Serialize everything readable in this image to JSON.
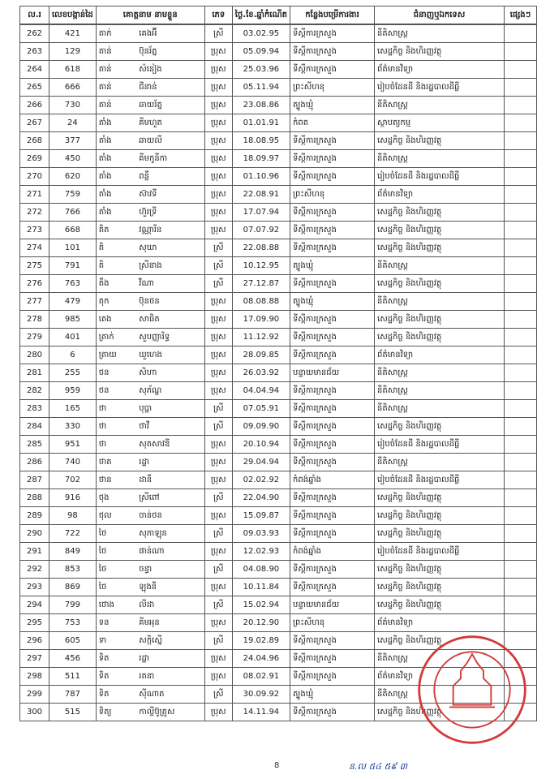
{
  "headers": {
    "no": "ល.រ",
    "id": "លេខបង្កាន់ដៃ",
    "name": "គោត្តនាម  នាមខ្លួន",
    "gender": "ភេទ",
    "dob": "ថ្ងៃ.ខែ.ឆ្នាំកំណើត",
    "workplace": "កន្លែងបម្រើការងារ",
    "subject": "ជំនាញឬឯកទេស",
    "other": "ផ្សេងៗ"
  },
  "rows": [
    {
      "no": "262",
      "id": "421",
      "surname": "តាក់",
      "name": "គេងអ៊ី",
      "gender": "ស្រី",
      "dob": "03.02.95",
      "workplace": "ទីស្តីការក្រសួង",
      "subject": "នីតិសាស្ត្រ"
    },
    {
      "no": "263",
      "id": "129",
      "surname": "តាន់",
      "name": "ប៊ុនរ័ត្ន",
      "gender": "ប្រុស",
      "dob": "05.09.94",
      "workplace": "ទីស្តីការក្រសួង",
      "subject": "សេដ្ឋកិច្ច និងហិរញ្ញវត្ថុ"
    },
    {
      "no": "264",
      "id": "618",
      "surname": "តាន់",
      "name": "សំនៀង",
      "gender": "ប្រុស",
      "dob": "25.03.96",
      "workplace": "ទីស្តីការក្រសួង",
      "subject": "ព័ត៌មានវិទ្យា"
    },
    {
      "no": "265",
      "id": "666",
      "surname": "តាន់",
      "name": "ជីនាន់",
      "gender": "ប្រុស",
      "dob": "05.11.94",
      "workplace": "ព្រះសីហនុ",
      "subject": "រៀបចំដែនដី និងរដ្ឋបាលដីធ្លី"
    },
    {
      "no": "266",
      "id": "730",
      "surname": "តាន់",
      "name": "ឆាយរ័ត្ន",
      "gender": "ប្រុស",
      "dob": "23.08.86",
      "workplace": "ត្បូងឃ្មុំ",
      "subject": "នីតិសាស្ត្រ"
    },
    {
      "no": "267",
      "id": "24",
      "surname": "តាំង",
      "name": "គីមហួត",
      "gender": "ប្រុស",
      "dob": "01.01.91",
      "workplace": "កំពត",
      "subject": "ស្ថាបត្យកម្ម"
    },
    {
      "no": "268",
      "id": "377",
      "surname": "តាំង",
      "name": "ឆាយលី",
      "gender": "ប្រុស",
      "dob": "18.08.95",
      "workplace": "ទីស្តីការក្រសួង",
      "subject": "សេដ្ឋកិច្ច និងហិរញ្ញវត្ថុ"
    },
    {
      "no": "269",
      "id": "450",
      "surname": "តាំង",
      "name": "គីមកូនីកា",
      "gender": "ប្រុស",
      "dob": "18.09.97",
      "workplace": "ទីស្តីការក្រសួង",
      "subject": "នីតិសាស្ត្រ"
    },
    {
      "no": "270",
      "id": "620",
      "surname": "តាំង",
      "name": "ពន្លឺ",
      "gender": "ប្រុស",
      "dob": "01.10.96",
      "workplace": "ទីស្តីការក្រសួង",
      "subject": "រៀបចំដែនដី និងរដ្ឋបាលដីធ្លី"
    },
    {
      "no": "271",
      "id": "759",
      "surname": "តាំង",
      "name": "ស៊ាវទី",
      "gender": "ប្រុស",
      "dob": "22.08.91",
      "workplace": "ព្រះសីហនុ",
      "subject": "ព័ត៌មានវិទ្យា"
    },
    {
      "no": "272",
      "id": "766",
      "surname": "តាំង",
      "name": "ហ៊ួរទ្រី",
      "gender": "ប្រុស",
      "dob": "17.07.94",
      "workplace": "ទីស្តីការក្រសួង",
      "subject": "សេដ្ឋកិច្ច និងហិរញ្ញវត្ថុ"
    },
    {
      "no": "273",
      "id": "668",
      "surname": "តិត",
      "name": "វណ្ណារីន",
      "gender": "ប្រុស",
      "dob": "07.07.92",
      "workplace": "ទីស្តីការក្រសួង",
      "subject": "សេដ្ឋកិច្ច និងហិរញ្ញវត្ថុ"
    },
    {
      "no": "274",
      "id": "101",
      "surname": "តិ",
      "name": "សុឃា",
      "gender": "ស្រី",
      "dob": "22.08.88",
      "workplace": "ទីស្តីការក្រសួង",
      "subject": "សេដ្ឋកិច្ច និងហិរញ្ញវត្ថុ"
    },
    {
      "no": "275",
      "id": "791",
      "surname": "តិ",
      "name": "ស្រីនាង",
      "gender": "ស្រី",
      "dob": "10.12.95",
      "workplace": "ត្បូងឃ្មុំ",
      "subject": "នីតិសាស្ត្រ"
    },
    {
      "no": "276",
      "id": "763",
      "surname": "តឹង",
      "name": "វីណា",
      "gender": "ស្រី",
      "dob": "27.12.87",
      "workplace": "ទីស្តីការក្រសួង",
      "subject": "សេដ្ឋកិច្ច និងហិរញ្ញវត្ថុ"
    },
    {
      "no": "277",
      "id": "479",
      "surname": "តុក",
      "name": "ប៊ុនថន",
      "gender": "ប្រុស",
      "dob": "08.08.88",
      "workplace": "ត្បូងឃ្មុំ",
      "subject": "នីតិសាស្ត្រ"
    },
    {
      "no": "278",
      "id": "985",
      "surname": "តេង",
      "name": "សាធិត",
      "gender": "ប្រុស",
      "dob": "17.09.90",
      "workplace": "ទីស្តីការក្រសួង",
      "subject": "សេដ្ឋកិច្ច និងហិរញ្ញវត្ថុ"
    },
    {
      "no": "279",
      "id": "401",
      "surname": "ត្រាក់",
      "name": "សួបញ្ញារិទ្ធ",
      "gender": "ប្រុស",
      "dob": "11.12.92",
      "workplace": "ទីស្តីការក្រសួង",
      "subject": "សេដ្ឋកិច្ច និងហិរញ្ញវត្ថុ"
    },
    {
      "no": "280",
      "id": "6",
      "surname": "ត្រាយ",
      "name": "ឃួហេង",
      "gender": "ប្រុស",
      "dob": "28.09.85",
      "workplace": "ទីស្តីការក្រសួង",
      "subject": "ព័ត៌មានវិទ្យា"
    },
    {
      "no": "281",
      "id": "255",
      "surname": "ថន",
      "name": "សិហា",
      "gender": "ប្រុស",
      "dob": "26.03.92",
      "workplace": "បន្ទាយមានជ័យ",
      "subject": "នីតិសាស្ត្រ"
    },
    {
      "no": "282",
      "id": "959",
      "surname": "ថន",
      "name": "សុភ័ណ្ឌ",
      "gender": "ប្រុស",
      "dob": "04.04.94",
      "workplace": "ទីស្តីការក្រសួង",
      "subject": "នីតិសាស្ត្រ"
    },
    {
      "no": "283",
      "id": "165",
      "surname": "ថា",
      "name": "បុប្ផា",
      "gender": "ស្រី",
      "dob": "07.05.91",
      "workplace": "ទីស្តីការក្រសួង",
      "subject": "នីតិសាស្ត្រ"
    },
    {
      "no": "284",
      "id": "330",
      "surname": "ថា",
      "name": "ថាវី",
      "gender": "ស្រី",
      "dob": "09.09.90",
      "workplace": "ទីស្តីការក្រសួង",
      "subject": "សេដ្ឋកិច្ច និងហិរញ្ញវត្ថុ"
    },
    {
      "no": "285",
      "id": "951",
      "surname": "ថា",
      "name": "សុតសាវឌី",
      "gender": "ប្រុស",
      "dob": "20.10.94",
      "workplace": "ទីស្តីការក្រសួង",
      "subject": "រៀបចំដែនដី និងរដ្ឋបាលដីធ្លី"
    },
    {
      "no": "286",
      "id": "740",
      "surname": "ថាត",
      "name": "រដ្ឋា",
      "gender": "ប្រុស",
      "dob": "29.04.94",
      "workplace": "ទីស្តីការក្រសួង",
      "subject": "នីតិសាស្ត្រ"
    },
    {
      "no": "287",
      "id": "702",
      "surname": "ថាន",
      "name": "ដានី",
      "gender": "ប្រុស",
      "dob": "02.02.92",
      "workplace": "កំពង់ឆ្នាំង",
      "subject": "រៀបចំដែនដី និងរដ្ឋបាលដីធ្លី"
    },
    {
      "no": "288",
      "id": "916",
      "surname": "ថុង",
      "name": "ស្រីពៅ",
      "gender": "ស្រី",
      "dob": "22.04.90",
      "workplace": "ទីស្តីការក្រសួង",
      "subject": "សេដ្ឋកិច្ច និងហិរញ្ញវត្ថុ"
    },
    {
      "no": "289",
      "id": "98",
      "surname": "ថុល",
      "name": "ចាន់ថន",
      "gender": "ប្រុស",
      "dob": "15.09.87",
      "workplace": "ទីស្តីការក្រសួង",
      "subject": "សេដ្ឋកិច្ច និងហិរញ្ញវត្ថុ"
    },
    {
      "no": "290",
      "id": "722",
      "surname": "ថៃ",
      "name": "សុភាឡុន",
      "gender": "ស្រី",
      "dob": "09.03.93",
      "workplace": "ទីស្តីការក្រសួង",
      "subject": "សេដ្ឋកិច្ច និងហិរញ្ញវត្ថុ"
    },
    {
      "no": "291",
      "id": "849",
      "surname": "ថៃ",
      "name": "ផាន់ណា",
      "gender": "ប្រុស",
      "dob": "12.02.93",
      "workplace": "កំពង់ឆ្នាំង",
      "subject": "រៀបចំដែនដី និងរដ្ឋបាលដីធ្លី"
    },
    {
      "no": "292",
      "id": "853",
      "surname": "ថៃ",
      "name": "ចន្ធា",
      "gender": "ស្រី",
      "dob": "04.08.90",
      "workplace": "ទីស្តីការក្រសួង",
      "subject": "សេដ្ឋកិច្ច និងហិរញ្ញវត្ថុ"
    },
    {
      "no": "293",
      "id": "869",
      "surname": "ថៃ",
      "name": "ឡុងនី",
      "gender": "ប្រុស",
      "dob": "10.11.84",
      "workplace": "ទីស្តីការក្រសួង",
      "subject": "សេដ្ឋកិច្ច និងហិរញ្ញវត្ថុ"
    },
    {
      "no": "294",
      "id": "799",
      "surname": "ថោង",
      "name": "លីដា",
      "gender": "ស្រី",
      "dob": "15.02.94",
      "workplace": "បន្ទាយមានជ័យ",
      "subject": "សេដ្ឋកិច្ច និងហិរញ្ញវត្ថុ"
    },
    {
      "no": "295",
      "id": "753",
      "surname": "ទន",
      "name": "គីមអុន",
      "gender": "ប្រុស",
      "dob": "20.12.90",
      "workplace": "ព្រះសីហនុ",
      "subject": "ព័ត៌មានវិទ្យា"
    },
    {
      "no": "296",
      "id": "605",
      "surname": "ទា",
      "name": "សក្កិស្នើ",
      "gender": "ស្រី",
      "dob": "19.02.89",
      "workplace": "ទីស្តីការក្រសួង",
      "subject": "សេដ្ឋកិច្ច និងហិរញ្ញវត្ថុ"
    },
    {
      "no": "297",
      "id": "456",
      "surname": "ទិត",
      "name": "រដ្ឋា",
      "gender": "ប្រុស",
      "dob": "24.04.96",
      "workplace": "ទីស្តីការក្រសួង",
      "subject": "នីតិសាស្ត្រ"
    },
    {
      "no": "298",
      "id": "511",
      "surname": "ទិត",
      "name": "រតនា",
      "gender": "ប្រុស",
      "dob": "08.02.91",
      "workplace": "ទីស្តីការក្រសួង",
      "subject": "ព័ត៌មានវិទ្យា"
    },
    {
      "no": "299",
      "id": "787",
      "surname": "ទិត",
      "name": "ស៊ីណាត",
      "gender": "ស្រី",
      "dob": "30.09.92",
      "workplace": "ត្បូងឃ្មុំ",
      "subject": "នីតិសាស្ត្រ"
    },
    {
      "no": "300",
      "id": "515",
      "surname": "ទិត្យ",
      "name": "កាល្លីប៊ូត្រូស",
      "gender": "ប្រុស",
      "dob": "14.11.94",
      "workplace": "ទីស្តីការក្រសួង",
      "subject": "សេដ្ឋកិច្ច និងហិរញ្ញវត្ថុ"
    }
  ],
  "page_number": "8",
  "signature": "ន.ល ៥៤ ៥៩ ៣",
  "stamp_color": "#d23a3a"
}
